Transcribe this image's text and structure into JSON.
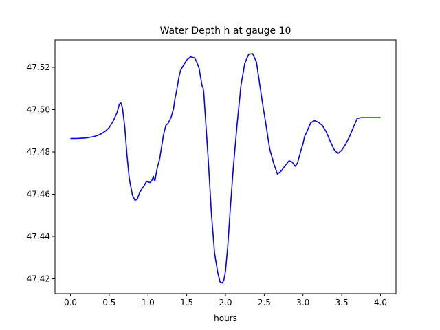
{
  "chart_data": {
    "type": "line",
    "title": "Water Depth h at gauge 10",
    "xlabel": "hours",
    "ylabel": "",
    "xlim": [
      -0.2,
      4.2
    ],
    "ylim": [
      47.413,
      47.533
    ],
    "x_ticks": [
      0.0,
      0.5,
      1.0,
      1.5,
      2.0,
      2.5,
      3.0,
      3.5,
      4.0
    ],
    "x_tick_labels": [
      "0.0",
      "0.5",
      "1.0",
      "1.5",
      "2.0",
      "2.5",
      "3.0",
      "3.5",
      "4.0"
    ],
    "y_ticks": [
      47.42,
      47.44,
      47.46,
      47.48,
      47.5,
      47.52
    ],
    "y_tick_labels": [
      "47.42",
      "47.44",
      "47.46",
      "47.48",
      "47.50",
      "47.52"
    ],
    "grid": false,
    "line_color": "#0000ff",
    "series": [
      {
        "x": [
          0.0,
          0.1,
          0.2,
          0.3,
          0.35,
          0.4,
          0.45,
          0.5,
          0.55,
          0.6,
          0.63,
          0.65,
          0.67,
          0.7,
          0.73,
          0.76,
          0.8,
          0.83,
          0.86,
          0.89,
          0.92,
          0.95,
          0.98,
          1.0,
          1.03,
          1.05,
          1.07,
          1.08,
          1.09,
          1.1,
          1.12,
          1.15,
          1.2,
          1.23,
          1.26,
          1.3,
          1.33,
          1.35,
          1.37,
          1.4,
          1.42,
          1.45,
          1.5,
          1.55,
          1.6,
          1.63,
          1.66,
          1.69,
          1.7,
          1.71,
          1.72,
          1.74,
          1.78,
          1.82,
          1.86,
          1.9,
          1.93,
          1.96,
          1.98,
          2.0,
          2.03,
          2.06,
          2.1,
          2.15,
          2.2,
          2.25,
          2.3,
          2.35,
          2.4,
          2.45,
          2.48,
          2.52,
          2.57,
          2.62,
          2.67,
          2.72,
          2.77,
          2.82,
          2.86,
          2.9,
          2.93,
          2.95,
          2.97,
          3.0,
          3.02,
          3.05,
          3.1,
          3.15,
          3.2,
          3.25,
          3.3,
          3.35,
          3.4,
          3.45,
          3.5,
          3.55,
          3.6,
          3.65,
          3.7,
          3.75,
          3.8,
          3.85,
          3.9,
          3.95,
          4.0
        ],
        "y": [
          47.4863,
          47.4864,
          47.4866,
          47.4872,
          47.4878,
          47.4886,
          47.4898,
          47.4915,
          47.4945,
          47.4985,
          47.5025,
          47.5032,
          47.501,
          47.492,
          47.478,
          47.467,
          47.4595,
          47.4572,
          47.4575,
          47.4605,
          47.4625,
          47.464,
          47.466,
          47.4658,
          47.4655,
          47.4665,
          47.4685,
          47.4668,
          47.4662,
          47.4685,
          47.4725,
          47.4765,
          47.488,
          47.4925,
          47.4935,
          47.4965,
          47.5005,
          47.5055,
          47.509,
          47.5155,
          47.5185,
          47.5205,
          47.5235,
          47.525,
          47.5245,
          47.5225,
          47.5195,
          47.513,
          47.511,
          47.5105,
          47.508,
          47.497,
          47.475,
          47.45,
          47.432,
          47.423,
          47.4185,
          47.418,
          47.4195,
          47.4235,
          47.4355,
          47.452,
          47.472,
          47.493,
          47.5115,
          47.522,
          47.5262,
          47.5265,
          47.5225,
          47.51,
          47.5025,
          47.4935,
          47.4815,
          47.4748,
          47.4695,
          47.471,
          47.4735,
          47.4758,
          47.4752,
          47.4732,
          47.4748,
          47.4775,
          47.4802,
          47.4838,
          47.4872,
          47.4895,
          47.4938,
          47.4948,
          47.494,
          47.4925,
          47.4895,
          47.4852,
          47.4812,
          47.4792,
          47.4808,
          47.4836,
          47.4872,
          47.4916,
          47.4958,
          47.4962,
          47.4962,
          47.4962,
          47.4962,
          47.4962,
          47.4962
        ]
      }
    ]
  }
}
